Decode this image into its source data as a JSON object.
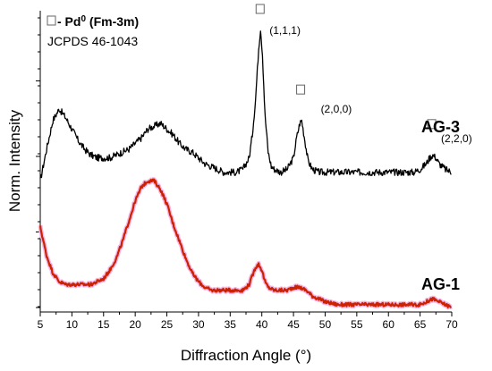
{
  "chart_data": {
    "type": "line",
    "xlabel": "Diffraction Angle (°)",
    "ylabel": "Norm. Intensity",
    "xlim": [
      5,
      70
    ],
    "ylim": [
      0,
      1
    ],
    "x_ticks": [
      5,
      10,
      15,
      20,
      25,
      30,
      35,
      40,
      45,
      50,
      55,
      60,
      65,
      70
    ],
    "grid": false,
    "legend": {
      "symbol": "□",
      "line1_prefix": "- Pd",
      "line1_sup": "0",
      "line1_suffix": " (Fm-3m)",
      "line2": "JCPDS 46-1043"
    },
    "peaks": [
      {
        "x": 39.8,
        "marker_y": 1.0,
        "label": "(1,1,1)"
      },
      {
        "x": 46.2,
        "marker_y": 0.72,
        "label": "(2,0,0)"
      },
      {
        "x": 66.9,
        "marker_y": 0.6,
        "label": "(2,2,0)"
      }
    ],
    "series": [
      {
        "name": "AG-3",
        "color": "#000000",
        "points": [
          [
            5,
            0.44
          ],
          [
            6,
            0.55
          ],
          [
            7,
            0.65
          ],
          [
            8,
            0.69
          ],
          [
            9,
            0.66
          ],
          [
            10,
            0.62
          ],
          [
            11,
            0.58
          ],
          [
            12,
            0.55
          ],
          [
            13,
            0.53
          ],
          [
            14,
            0.52
          ],
          [
            15,
            0.52
          ],
          [
            16,
            0.52
          ],
          [
            17,
            0.53
          ],
          [
            18,
            0.54
          ],
          [
            19,
            0.55
          ],
          [
            20,
            0.57
          ],
          [
            21,
            0.59
          ],
          [
            22,
            0.62
          ],
          [
            23,
            0.63
          ],
          [
            24,
            0.64
          ],
          [
            25,
            0.62
          ],
          [
            26,
            0.6
          ],
          [
            27,
            0.57
          ],
          [
            28,
            0.55
          ],
          [
            29,
            0.54
          ],
          [
            30,
            0.52
          ],
          [
            31,
            0.5
          ],
          [
            32,
            0.49
          ],
          [
            33,
            0.48
          ],
          [
            34,
            0.47
          ],
          [
            35,
            0.47
          ],
          [
            36,
            0.47
          ],
          [
            37,
            0.48
          ],
          [
            38,
            0.52
          ],
          [
            38.5,
            0.6
          ],
          [
            39,
            0.72
          ],
          [
            39.5,
            0.9
          ],
          [
            39.8,
            0.97
          ],
          [
            40.1,
            0.88
          ],
          [
            40.5,
            0.67
          ],
          [
            41,
            0.54
          ],
          [
            41.5,
            0.49
          ],
          [
            42,
            0.48
          ],
          [
            43,
            0.47
          ],
          [
            44,
            0.48
          ],
          [
            45,
            0.52
          ],
          [
            45.5,
            0.59
          ],
          [
            46,
            0.64
          ],
          [
            46.3,
            0.65
          ],
          [
            46.8,
            0.58
          ],
          [
            47.3,
            0.51
          ],
          [
            48,
            0.48
          ],
          [
            49,
            0.47
          ],
          [
            50,
            0.47
          ],
          [
            52,
            0.47
          ],
          [
            54,
            0.47
          ],
          [
            56,
            0.47
          ],
          [
            58,
            0.47
          ],
          [
            60,
            0.47
          ],
          [
            62,
            0.47
          ],
          [
            64,
            0.47
          ],
          [
            65,
            0.48
          ],
          [
            65.5,
            0.49
          ],
          [
            66,
            0.5
          ],
          [
            66.5,
            0.52
          ],
          [
            67,
            0.53
          ],
          [
            67.5,
            0.52
          ],
          [
            68,
            0.5
          ],
          [
            69,
            0.48
          ],
          [
            70,
            0.47
          ]
        ]
      },
      {
        "name": "AG-1",
        "color": "#cc2200",
        "points": [
          [
            5,
            0.28
          ],
          [
            5.5,
            0.23
          ],
          [
            6,
            0.18
          ],
          [
            7,
            0.12
          ],
          [
            8,
            0.09
          ],
          [
            9,
            0.08
          ],
          [
            10,
            0.08
          ],
          [
            11,
            0.08
          ],
          [
            12,
            0.08
          ],
          [
            13,
            0.08
          ],
          [
            14,
            0.09
          ],
          [
            15,
            0.1
          ],
          [
            16,
            0.13
          ],
          [
            17,
            0.17
          ],
          [
            18,
            0.23
          ],
          [
            19,
            0.3
          ],
          [
            20,
            0.37
          ],
          [
            21,
            0.42
          ],
          [
            22,
            0.44
          ],
          [
            22.5,
            0.44
          ],
          [
            23,
            0.44
          ],
          [
            24,
            0.41
          ],
          [
            25,
            0.36
          ],
          [
            26,
            0.29
          ],
          [
            27,
            0.23
          ],
          [
            28,
            0.17
          ],
          [
            29,
            0.12
          ],
          [
            30,
            0.09
          ],
          [
            31,
            0.07
          ],
          [
            32,
            0.06
          ],
          [
            33,
            0.06
          ],
          [
            34,
            0.06
          ],
          [
            35,
            0.06
          ],
          [
            36,
            0.06
          ],
          [
            37,
            0.06
          ],
          [
            38,
            0.08
          ],
          [
            38.5,
            0.11
          ],
          [
            39,
            0.14
          ],
          [
            39.5,
            0.15
          ],
          [
            40,
            0.13
          ],
          [
            40.5,
            0.09
          ],
          [
            41,
            0.07
          ],
          [
            42,
            0.06
          ],
          [
            43,
            0.06
          ],
          [
            44,
            0.06
          ],
          [
            45,
            0.07
          ],
          [
            46,
            0.07
          ],
          [
            47,
            0.06
          ],
          [
            48,
            0.04
          ],
          [
            50,
            0.02
          ],
          [
            52,
            0.01
          ],
          [
            54,
            0.01
          ],
          [
            56,
            0.01
          ],
          [
            58,
            0.01
          ],
          [
            60,
            0.01
          ],
          [
            62,
            0.01
          ],
          [
            64,
            0.01
          ],
          [
            65,
            0.01
          ],
          [
            66,
            0.02
          ],
          [
            67,
            0.03
          ],
          [
            68,
            0.02
          ],
          [
            69,
            0.01
          ],
          [
            70,
            0.0
          ]
        ]
      }
    ]
  }
}
